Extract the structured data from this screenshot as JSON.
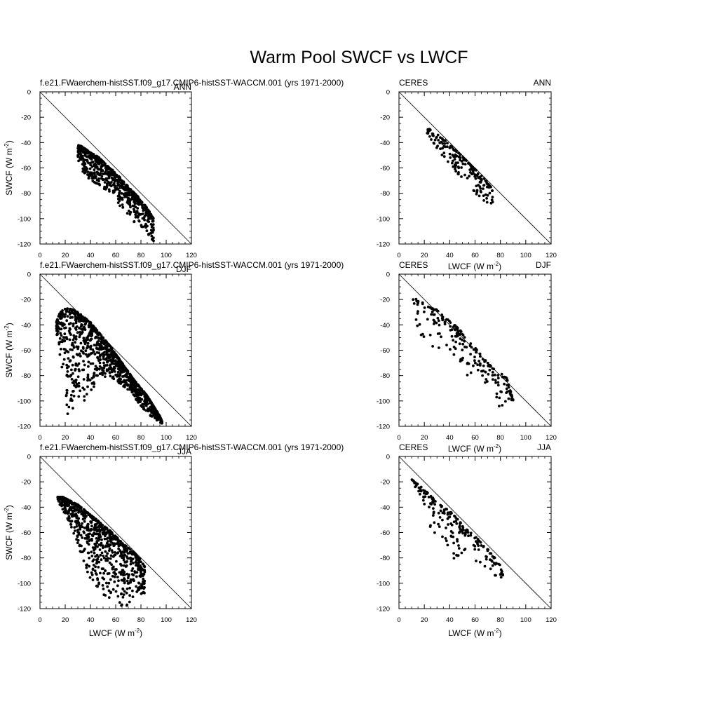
{
  "figure_title": "Warm Pool SWCF vs LWCF",
  "chart_data": [
    {
      "type": "scatter",
      "left_title": "f.e21.FWaerchem-histSST.f09_g17.CMIP6-histSST-WACCM.001 (yrs 1971-2000)",
      "right_title": "ANN",
      "xlabel": "",
      "xunit": "",
      "ylabel": "SWCF (W m",
      "yunit": "-2",
      "xlim": [
        0,
        120
      ],
      "ylim": [
        -120,
        0
      ],
      "x_ticks": [
        0,
        20,
        40,
        60,
        80,
        100,
        120
      ],
      "y_ticks": [
        0,
        -20,
        -40,
        -60,
        -80,
        -100,
        -120
      ],
      "reference_line": [
        [
          0,
          0
        ],
        [
          120,
          -120
        ]
      ],
      "grid": false,
      "series": [
        {
          "core": [
            [
              30,
              -42
            ],
            [
              33,
              -43
            ],
            [
              36,
              -45
            ],
            [
              40,
              -48
            ],
            [
              44,
              -50
            ],
            [
              47,
              -52
            ],
            [
              50,
              -55
            ],
            [
              52,
              -57
            ],
            [
              55,
              -60
            ],
            [
              58,
              -62
            ],
            [
              60,
              -65
            ],
            [
              63,
              -67
            ],
            [
              65,
              -70
            ],
            [
              68,
              -72
            ],
            [
              70,
              -75
            ],
            [
              73,
              -78
            ],
            [
              75,
              -80
            ],
            [
              78,
              -83
            ],
            [
              80,
              -86
            ],
            [
              83,
              -89
            ],
            [
              85,
              -92
            ],
            [
              87,
              -95
            ],
            [
              90,
              -100
            ]
          ],
          "scatter_min": [
            [
              30,
              -55
            ],
            [
              33,
              -62
            ],
            [
              36,
              -66
            ],
            [
              40,
              -70
            ],
            [
              45,
              -73
            ],
            [
              50,
              -76
            ],
            [
              55,
              -80
            ],
            [
              60,
              -86
            ],
            [
              65,
              -92
            ],
            [
              70,
              -98
            ],
            [
              75,
              -103
            ],
            [
              80,
              -108
            ],
            [
              85,
              -112
            ],
            [
              88,
              -116
            ],
            [
              92,
              -119
            ]
          ],
          "points": 640
        }
      ]
    },
    {
      "type": "scatter",
      "left_title": "CERES",
      "right_title": "ANN",
      "xlabel": "",
      "xunit": "",
      "ylabel": "",
      "yunit": "",
      "xlim": [
        0,
        120
      ],
      "ylim": [
        -120,
        0
      ],
      "x_ticks": [
        0,
        20,
        40,
        60,
        80,
        100,
        120
      ],
      "y_ticks": [
        0,
        -20,
        -40,
        -60,
        -80,
        -100,
        -120
      ],
      "reference_line": [
        [
          0,
          0
        ],
        [
          120,
          -120
        ]
      ],
      "grid": false,
      "series": [
        {
          "core": [
            [
              21,
              -28
            ],
            [
              25,
              -30
            ],
            [
              30,
              -33
            ],
            [
              35,
              -37
            ],
            [
              40,
              -42
            ],
            [
              45,
              -46
            ],
            [
              50,
              -51
            ],
            [
              55,
              -56
            ],
            [
              60,
              -61
            ],
            [
              65,
              -66
            ],
            [
              70,
              -72
            ],
            [
              74,
              -77
            ]
          ],
          "scatter_min": [
            [
              21,
              -32
            ],
            [
              25,
              -38
            ],
            [
              30,
              -46
            ],
            [
              35,
              -52
            ],
            [
              40,
              -58
            ],
            [
              45,
              -64
            ],
            [
              50,
              -70
            ],
            [
              55,
              -75
            ],
            [
              60,
              -80
            ],
            [
              65,
              -86
            ],
            [
              70,
              -88
            ],
            [
              74,
              -90
            ]
          ],
          "points": 190
        }
      ]
    },
    {
      "type": "scatter",
      "left_title": "f.e21.FWaerchem-histSST.f09_g17.CMIP6-histSST-WACCM.001 (yrs 1971-2000)",
      "right_title": "DJF",
      "xlabel": "",
      "xunit": "",
      "ylabel": "SWCF (W m",
      "yunit": "-2",
      "xlim": [
        0,
        120
      ],
      "ylim": [
        -120,
        0
      ],
      "x_ticks": [
        0,
        20,
        40,
        60,
        80,
        100,
        120
      ],
      "y_ticks": [
        0,
        -20,
        -40,
        -60,
        -80,
        -100,
        -120
      ],
      "reference_line": [
        [
          0,
          0
        ],
        [
          120,
          -120
        ]
      ],
      "grid": false,
      "series": [
        {
          "core": [
            [
              13,
              -38
            ],
            [
              15,
              -32
            ],
            [
              18,
              -28
            ],
            [
              22,
              -27
            ],
            [
              26,
              -28
            ],
            [
              30,
              -30
            ],
            [
              35,
              -34
            ],
            [
              40,
              -38
            ],
            [
              45,
              -44
            ],
            [
              50,
              -50
            ],
            [
              55,
              -56
            ],
            [
              60,
              -63
            ],
            [
              65,
              -70
            ],
            [
              70,
              -77
            ],
            [
              75,
              -84
            ],
            [
              80,
              -90
            ],
            [
              85,
              -96
            ],
            [
              90,
              -104
            ],
            [
              95,
              -112
            ],
            [
              97,
              -117
            ]
          ],
          "scatter_min": [
            [
              13,
              -45
            ],
            [
              15,
              -60
            ],
            [
              18,
              -90
            ],
            [
              20,
              -112
            ],
            [
              25,
              -108
            ],
            [
              30,
              -104
            ],
            [
              35,
              -100
            ],
            [
              40,
              -92
            ],
            [
              45,
              -86
            ],
            [
              50,
              -82
            ],
            [
              55,
              -80
            ],
            [
              60,
              -84
            ],
            [
              65,
              -88
            ],
            [
              70,
              -92
            ],
            [
              75,
              -98
            ],
            [
              80,
              -104
            ],
            [
              85,
              -110
            ],
            [
              90,
              -114
            ],
            [
              95,
              -117
            ],
            [
              97,
              -118
            ]
          ],
          "points": 1100
        }
      ]
    },
    {
      "type": "scatter",
      "left_title": "CERES",
      "right_title": "DJF",
      "xlabel": "",
      "xunit": "",
      "ylabel": "",
      "yunit": "",
      "xlim": [
        0,
        120
      ],
      "ylim": [
        -120,
        0
      ],
      "x_ticks": [
        0,
        20,
        40,
        60,
        80,
        100,
        120
      ],
      "y_ticks": [
        0,
        -20,
        -40,
        -60,
        -80,
        -100,
        -120
      ],
      "reference_line": [
        [
          0,
          0
        ],
        [
          120,
          -120
        ]
      ],
      "grid": false,
      "series": [
        {
          "core": [
            [
              10,
              -18
            ],
            [
              14,
              -20
            ],
            [
              18,
              -22
            ],
            [
              22,
              -25
            ],
            [
              26,
              -27
            ],
            [
              30,
              -28
            ],
            [
              35,
              -32
            ],
            [
              40,
              -37
            ],
            [
              45,
              -41
            ],
            [
              50,
              -46
            ],
            [
              55,
              -53
            ],
            [
              60,
              -58
            ],
            [
              65,
              -64
            ],
            [
              70,
              -70
            ],
            [
              75,
              -75
            ],
            [
              80,
              -78
            ],
            [
              85,
              -82
            ],
            [
              90,
              -99
            ]
          ],
          "scatter_min": [
            [
              10,
              -22
            ],
            [
              14,
              -40
            ],
            [
              18,
              -58
            ],
            [
              22,
              -62
            ],
            [
              26,
              -58
            ],
            [
              30,
              -62
            ],
            [
              35,
              -64
            ],
            [
              40,
              -62
            ],
            [
              45,
              -66
            ],
            [
              50,
              -70
            ],
            [
              55,
              -86
            ],
            [
              60,
              -72
            ],
            [
              65,
              -80
            ],
            [
              70,
              -90
            ],
            [
              75,
              -96
            ],
            [
              80,
              -108
            ],
            [
              85,
              -100
            ],
            [
              90,
              -100
            ]
          ],
          "points": 210
        }
      ]
    },
    {
      "type": "scatter",
      "left_title": "f.e21.FWaerchem-histSST.f09_g17.CMIP6-histSST-WACCM.001 (yrs 1971-2000)",
      "right_title": "JJA",
      "xlabel": "LWCF (W m",
      "xunit": "-2",
      "ylabel": "SWCF (W m",
      "yunit": "-2",
      "xlim": [
        0,
        120
      ],
      "ylim": [
        -120,
        0
      ],
      "x_ticks": [
        0,
        20,
        40,
        60,
        80,
        100,
        120
      ],
      "y_ticks": [
        0,
        -20,
        -40,
        -60,
        -80,
        -100,
        -120
      ],
      "reference_line": [
        [
          0,
          0
        ],
        [
          120,
          -120
        ]
      ],
      "grid": false,
      "series": [
        {
          "core": [
            [
              14,
              -32
            ],
            [
              18,
              -32
            ],
            [
              22,
              -34
            ],
            [
              26,
              -36
            ],
            [
              30,
              -38
            ],
            [
              35,
              -42
            ],
            [
              40,
              -46
            ],
            [
              45,
              -50
            ],
            [
              50,
              -54
            ],
            [
              55,
              -58
            ],
            [
              60,
              -63
            ],
            [
              65,
              -68
            ],
            [
              70,
              -72
            ],
            [
              75,
              -76
            ],
            [
              80,
              -82
            ],
            [
              83,
              -87
            ]
          ],
          "scatter_min": [
            [
              14,
              -35
            ],
            [
              18,
              -42
            ],
            [
              22,
              -50
            ],
            [
              26,
              -60
            ],
            [
              30,
              -70
            ],
            [
              35,
              -86
            ],
            [
              40,
              -98
            ],
            [
              45,
              -104
            ],
            [
              50,
              -110
            ],
            [
              55,
              -112
            ],
            [
              60,
              -116
            ],
            [
              65,
              -118
            ],
            [
              70,
              -118
            ],
            [
              75,
              -114
            ],
            [
              80,
              -110
            ],
            [
              83,
              -110
            ]
          ],
          "points": 820
        }
      ]
    },
    {
      "type": "scatter",
      "left_title": "CERES",
      "right_title": "JJA",
      "xlabel": "LWCF (W m",
      "xunit": "-2",
      "ylabel": "",
      "yunit": "",
      "xlim": [
        0,
        120
      ],
      "ylim": [
        -120,
        0
      ],
      "x_ticks": [
        0,
        20,
        40,
        60,
        80,
        100,
        120
      ],
      "y_ticks": [
        0,
        -20,
        -40,
        -60,
        -80,
        -100,
        -120
      ],
      "reference_line": [
        [
          0,
          0
        ],
        [
          120,
          -120
        ]
      ],
      "grid": false,
      "series": [
        {
          "core": [
            [
              10,
              -18
            ],
            [
              15,
              -22
            ],
            [
              20,
              -26
            ],
            [
              25,
              -31
            ],
            [
              30,
              -36
            ],
            [
              35,
              -40
            ],
            [
              40,
              -43
            ],
            [
              45,
              -48
            ],
            [
              50,
              -54
            ],
            [
              55,
              -59
            ],
            [
              60,
              -63
            ],
            [
              65,
              -68
            ],
            [
              70,
              -73
            ],
            [
              75,
              -79
            ],
            [
              80,
              -86
            ],
            [
              82,
              -93
            ]
          ],
          "scatter_min": [
            [
              10,
              -20
            ],
            [
              15,
              -28
            ],
            [
              20,
              -44
            ],
            [
              25,
              -58
            ],
            [
              30,
              -68
            ],
            [
              35,
              -70
            ],
            [
              40,
              -76
            ],
            [
              45,
              -84
            ],
            [
              50,
              -80
            ],
            [
              55,
              -82
            ],
            [
              60,
              -86
            ],
            [
              65,
              -86
            ],
            [
              70,
              -90
            ],
            [
              75,
              -96
            ],
            [
              80,
              -96
            ],
            [
              82,
              -94
            ]
          ],
          "points": 200
        }
      ]
    }
  ],
  "colors": {
    "marker": "#000000",
    "line": "#000000",
    "frame": "#000000",
    "background": "#ffffff"
  }
}
